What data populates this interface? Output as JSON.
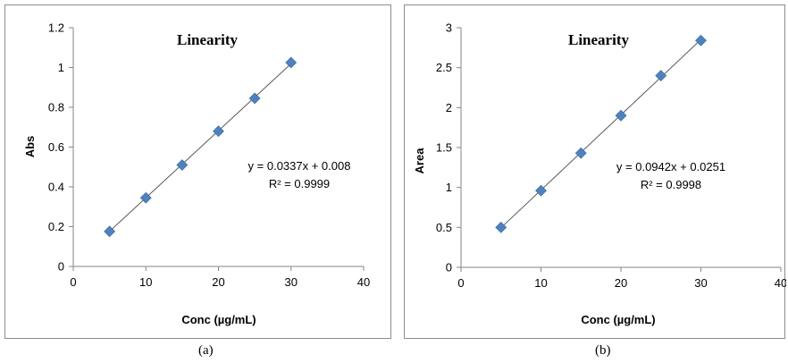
{
  "chart_data": [
    {
      "type": "scatter",
      "panel_label": "(a)",
      "title": "Linearity",
      "xlabel": "Conc (µg/mL)",
      "ylabel": "Abs",
      "xlim": [
        0,
        40
      ],
      "ylim": [
        0,
        1.2
      ],
      "x_ticks": [
        0,
        10,
        20,
        30,
        40
      ],
      "y_ticks": [
        0,
        0.2,
        0.4,
        0.6,
        0.8,
        1,
        1.2
      ],
      "x_tick_labels": [
        "0",
        "10",
        "20",
        "30",
        "40"
      ],
      "y_tick_labels": [
        "0",
        "0.2",
        "0.4",
        "0.6",
        "0.8",
        "1",
        "1.2"
      ],
      "x": [
        5,
        10,
        15,
        20,
        25,
        30
      ],
      "y": [
        0.176,
        0.345,
        0.51,
        0.68,
        0.845,
        1.025
      ],
      "trendline": {
        "slope": 0.0337,
        "intercept": 0.008
      },
      "equation": "y = 0.0337x + 0.008",
      "r_squared": "R² = 0.9999",
      "marker_color": "#4f81bd",
      "line_color": "#595959",
      "grid": false
    },
    {
      "type": "scatter",
      "panel_label": "(b)",
      "title": "Linearity",
      "xlabel": "Conc (µg/mL)",
      "ylabel": "Area",
      "xlim": [
        0,
        40
      ],
      "ylim": [
        0,
        3
      ],
      "x_ticks": [
        0,
        10,
        20,
        30,
        40
      ],
      "y_ticks": [
        0,
        0.5,
        1,
        1.5,
        2,
        2.5,
        3
      ],
      "x_tick_labels": [
        "0",
        "10",
        "20",
        "30",
        "40"
      ],
      "y_tick_labels": [
        "0",
        "0.5",
        "1",
        "1.5",
        "2",
        "2.5",
        "3"
      ],
      "x": [
        5,
        10,
        15,
        20,
        25,
        30
      ],
      "y": [
        0.5,
        0.96,
        1.43,
        1.9,
        2.4,
        2.84
      ],
      "trendline": {
        "slope": 0.0942,
        "intercept": 0.0251
      },
      "equation": "y = 0.0942x + 0.0251",
      "r_squared": "R² = 0.9998",
      "marker_color": "#4f81bd",
      "line_color": "#595959",
      "grid": false
    }
  ]
}
